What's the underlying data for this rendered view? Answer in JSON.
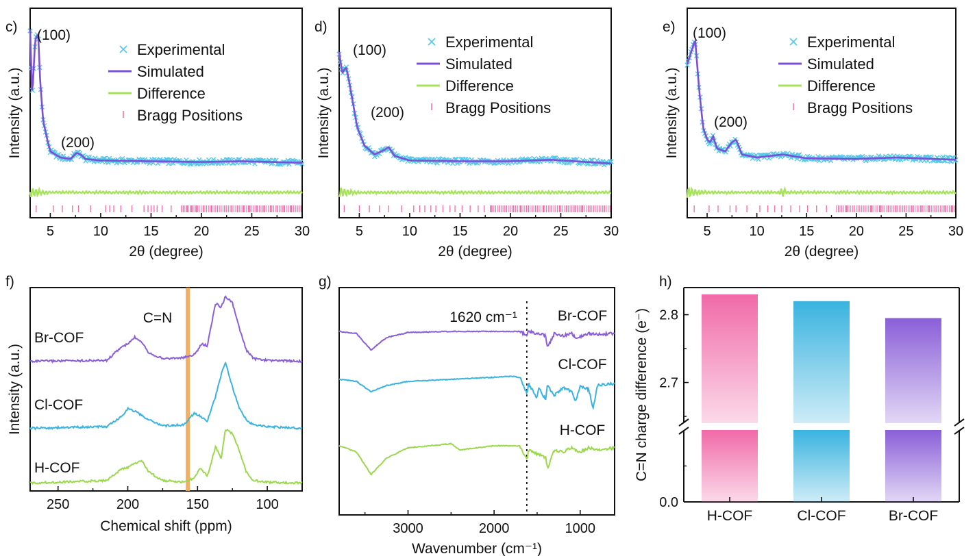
{
  "colors": {
    "experimental": "#54c8ea",
    "simulated": "#7b4fd6",
    "difference": "#a7e35a",
    "bragg": "#f06aa8",
    "br": "#8a5fd8",
    "cl": "#3ab3df",
    "h": "#9bd84e",
    "highlight": "#f3a654"
  },
  "xrd_legend": {
    "experimental": "Experimental",
    "simulated": "Simulated",
    "difference": "Difference",
    "bragg": "Bragg Positions"
  },
  "chart_data": [
    {
      "panel": "c)",
      "type": "line",
      "xlabel": "2θ (degree)",
      "ylabel": "Intensity (a.u.)",
      "xlim": [
        3,
        30
      ],
      "xticks": [
        5,
        10,
        15,
        20,
        25,
        30
      ],
      "peak_labels": [
        "(100)",
        "(200)"
      ],
      "series": [
        {
          "name": "Experimental",
          "x": [
            3,
            3.2,
            3.5,
            3.8,
            4.0,
            4.3,
            4.7,
            5.0,
            6.0,
            7.0,
            7.6,
            8.0,
            8.5,
            10,
            15,
            20,
            24,
            30
          ],
          "y": [
            95,
            50,
            88,
            92,
            60,
            34,
            22,
            14,
            10,
            9,
            13,
            12,
            9,
            8,
            7.5,
            7,
            7.5,
            6.5
          ]
        },
        {
          "name": "Simulated",
          "x": [
            3,
            3.2,
            3.5,
            3.8,
            4.0,
            4.3,
            4.7,
            5.0,
            6.0,
            7.0,
            7.6,
            8.0,
            8.5,
            10,
            15,
            20,
            24,
            30
          ],
          "y": [
            95,
            50,
            88,
            92,
            60,
            34,
            22,
            14,
            10,
            9,
            13,
            12,
            9,
            8,
            7.5,
            7,
            7.5,
            6.5
          ]
        },
        {
          "name": "Difference",
          "x": [
            3,
            30
          ],
          "y": [
            -5,
            -5
          ]
        }
      ],
      "bragg_positions": [
        3.6,
        5.3,
        6.2,
        7.2,
        7.8,
        9.0,
        10.5,
        10.9,
        11.3,
        12.0,
        13.1,
        14.3,
        14.7,
        15.0,
        15.3,
        15.6,
        16.1,
        17.0,
        18.2,
        18.6,
        19.0,
        19.5,
        20.2,
        21.0,
        21.6,
        22.3,
        23.0,
        23.6,
        24.2,
        24.8,
        25.5,
        26.2,
        26.9,
        27.5,
        28.2,
        28.9,
        29.5
      ]
    },
    {
      "panel": "d)",
      "type": "line",
      "xlabel": "2θ (degree)",
      "ylabel": "Intensity (a.u.)",
      "xlim": [
        3,
        30
      ],
      "xticks": [
        5,
        10,
        15,
        20,
        25,
        30
      ],
      "peak_labels": [
        "(100)",
        "(200)"
      ],
      "series": [
        {
          "name": "Experimental",
          "x": [
            3,
            3.3,
            3.7,
            4.0,
            4.4,
            4.8,
            5.5,
            6.5,
            7.5,
            7.9,
            8.5,
            10,
            15,
            20,
            24,
            30
          ],
          "y": [
            80,
            66,
            70,
            60,
            45,
            30,
            18,
            12,
            15,
            17,
            11,
            8,
            7.5,
            7.5,
            8.5,
            6
          ]
        },
        {
          "name": "Simulated",
          "x": [
            3,
            3.3,
            3.7,
            4.0,
            4.4,
            4.8,
            5.5,
            6.5,
            7.5,
            7.9,
            8.5,
            10,
            15,
            20,
            24,
            30
          ],
          "y": [
            80,
            66,
            70,
            60,
            45,
            30,
            18,
            12,
            15,
            17,
            11,
            8,
            7.5,
            7.5,
            8.5,
            6
          ]
        },
        {
          "name": "Difference",
          "x": [
            3,
            30
          ],
          "y": [
            -5,
            -5
          ]
        }
      ],
      "bragg_positions": [
        3.5,
        5.0,
        6.0,
        7.0,
        7.9,
        9.2,
        10.4,
        11.0,
        11.5,
        12.1,
        12.6,
        13.3,
        14.0,
        14.5,
        15.2,
        16.0,
        16.8,
        17.4,
        18.1,
        18.9,
        19.6,
        20.3,
        21.0,
        21.8,
        22.5,
        23.3,
        24.1,
        24.9,
        25.6,
        26.4,
        27.1,
        27.9,
        28.6,
        29.3
      ]
    },
    {
      "panel": "e)",
      "type": "line",
      "xlabel": "2θ (degree)",
      "ylabel": "Intensity (a.u.)",
      "xlim": [
        3,
        30
      ],
      "xticks": [
        5,
        10,
        15,
        20,
        25,
        30
      ],
      "peak_labels": [
        "(100)",
        "(200)"
      ],
      "series": [
        {
          "name": "Experimental",
          "x": [
            3,
            3.4,
            3.8,
            4.2,
            4.6,
            5.0,
            5.3,
            5.6,
            6.0,
            6.8,
            7.5,
            7.9,
            8.5,
            10,
            12.6,
            15,
            20,
            24,
            30
          ],
          "y": [
            72,
            80,
            88,
            55,
            30,
            22,
            20,
            24,
            16,
            14,
            20,
            22,
            12,
            10,
            12,
            9.5,
            9,
            10,
            8.5
          ]
        },
        {
          "name": "Simulated",
          "x": [
            3,
            3.4,
            3.8,
            4.2,
            4.6,
            5.0,
            5.3,
            5.6,
            6.0,
            6.8,
            7.5,
            7.9,
            8.5,
            10,
            12.6,
            15,
            20,
            24,
            30
          ],
          "y": [
            72,
            80,
            88,
            55,
            30,
            22,
            20,
            24,
            16,
            14,
            20,
            22,
            12,
            10,
            12,
            9.5,
            9,
            10,
            8.5
          ]
        },
        {
          "name": "Difference",
          "x": [
            3,
            30
          ],
          "y": [
            -5,
            -5
          ]
        }
      ],
      "bragg_positions": [
        3.7,
        5.2,
        6.1,
        7.3,
        7.9,
        9.0,
        10.3,
        11.1,
        11.8,
        12.5,
        13.4,
        14.3,
        15.1,
        16.0,
        17.0,
        18.2,
        19.0,
        19.8,
        20.7,
        21.5,
        22.4,
        23.2,
        24.0,
        24.8,
        25.7,
        26.5,
        27.3,
        28.1,
        28.9,
        29.6
      ]
    },
    {
      "panel": "f)",
      "type": "line",
      "xlabel": "Chemical shift (ppm)",
      "ylabel": "Intensity (a.u.)",
      "xlim": [
        270,
        75
      ],
      "xticks": [
        250,
        200,
        150,
        100
      ],
      "annotation": "C=N",
      "highlight_ppm": 157,
      "series": [
        {
          "name": "Br-COF",
          "x": [
            270,
            215,
            205,
            200,
            195,
            190,
            185,
            175,
            160,
            152,
            147,
            143,
            137,
            133,
            130,
            125,
            120,
            115,
            110,
            100,
            75
          ],
          "y": [
            2,
            3,
            18,
            22,
            30,
            25,
            12,
            5,
            6,
            10,
            22,
            20,
            70,
            65,
            78,
            70,
            40,
            15,
            5,
            3,
            2
          ]
        },
        {
          "name": "Cl-COF",
          "x": [
            270,
            215,
            205,
            200,
            195,
            185,
            175,
            160,
            152,
            147,
            143,
            137,
            133,
            130,
            125,
            120,
            115,
            110,
            100,
            75
          ],
          "y": [
            2,
            4,
            15,
            25,
            22,
            12,
            5,
            6,
            20,
            15,
            10,
            40,
            65,
            80,
            50,
            25,
            12,
            6,
            4,
            2
          ]
        },
        {
          "name": "H-COF",
          "x": [
            270,
            215,
            205,
            200,
            195,
            190,
            185,
            175,
            160,
            152,
            148,
            143,
            137,
            133,
            130,
            125,
            120,
            115,
            110,
            100,
            75
          ],
          "y": [
            2,
            5,
            18,
            20,
            25,
            28,
            15,
            5,
            3,
            8,
            20,
            10,
            45,
            30,
            65,
            60,
            40,
            15,
            5,
            3,
            2
          ]
        }
      ]
    },
    {
      "panel": "g)",
      "type": "line",
      "xlabel": "Wavenumber (cm⁻¹)",
      "xlim": [
        3800,
        600
      ],
      "xticks": [
        3000,
        2000,
        1000
      ],
      "annotation": "1620 cm⁻¹",
      "marker_x": 1620,
      "series": [
        {
          "name": "Br-COF",
          "x": [
            3800,
            3600,
            3430,
            3250,
            3000,
            2500,
            2000,
            1700,
            1620,
            1600,
            1500,
            1400,
            1380,
            1300,
            1200,
            1100,
            1050,
            900,
            800,
            600
          ],
          "y": [
            0,
            -2,
            -18,
            -6,
            -1,
            0,
            0,
            0,
            -4,
            0,
            -2,
            -4,
            -16,
            -2,
            -4,
            -2,
            -6,
            -2,
            -3,
            -2
          ]
        },
        {
          "name": "Cl-COF",
          "x": [
            3800,
            3600,
            3430,
            3250,
            3000,
            2500,
            2000,
            1800,
            1700,
            1620,
            1600,
            1500,
            1480,
            1400,
            1380,
            1300,
            1200,
            1100,
            1050,
            1000,
            900,
            850,
            800,
            600
          ],
          "y": [
            0,
            -2,
            -12,
            -6,
            -2,
            0,
            2,
            3,
            2,
            -14,
            -4,
            -18,
            -8,
            -20,
            -6,
            -16,
            -8,
            -12,
            -22,
            -6,
            -10,
            -28,
            -6,
            -4
          ]
        },
        {
          "name": "H-COF",
          "x": [
            3800,
            3600,
            3430,
            3250,
            3000,
            2500,
            2400,
            2000,
            1700,
            1620,
            1600,
            1500,
            1400,
            1380,
            1300,
            1200,
            1100,
            1000,
            900,
            800,
            600
          ],
          "y": [
            0,
            -6,
            -28,
            -12,
            -2,
            2,
            -4,
            0,
            0,
            -14,
            -4,
            -8,
            -12,
            -22,
            -4,
            -6,
            -2,
            -6,
            -2,
            -4,
            -2
          ]
        }
      ],
      "series_labels": [
        "Br-COF",
        "Cl-COF",
        "H-COF"
      ]
    },
    {
      "panel": "h)",
      "type": "bar",
      "categories": [
        "H-COF",
        "Cl-COF",
        "Br-COF"
      ],
      "values": [
        2.83,
        2.82,
        2.795
      ],
      "ylabel": "C=N charge difference (e⁻)",
      "yticks": [
        0.0,
        2.7,
        2.8
      ],
      "axis_break": true,
      "ylim_lower": [
        0,
        0.1
      ],
      "ylim_upper": [
        2.64,
        2.84
      ]
    }
  ]
}
